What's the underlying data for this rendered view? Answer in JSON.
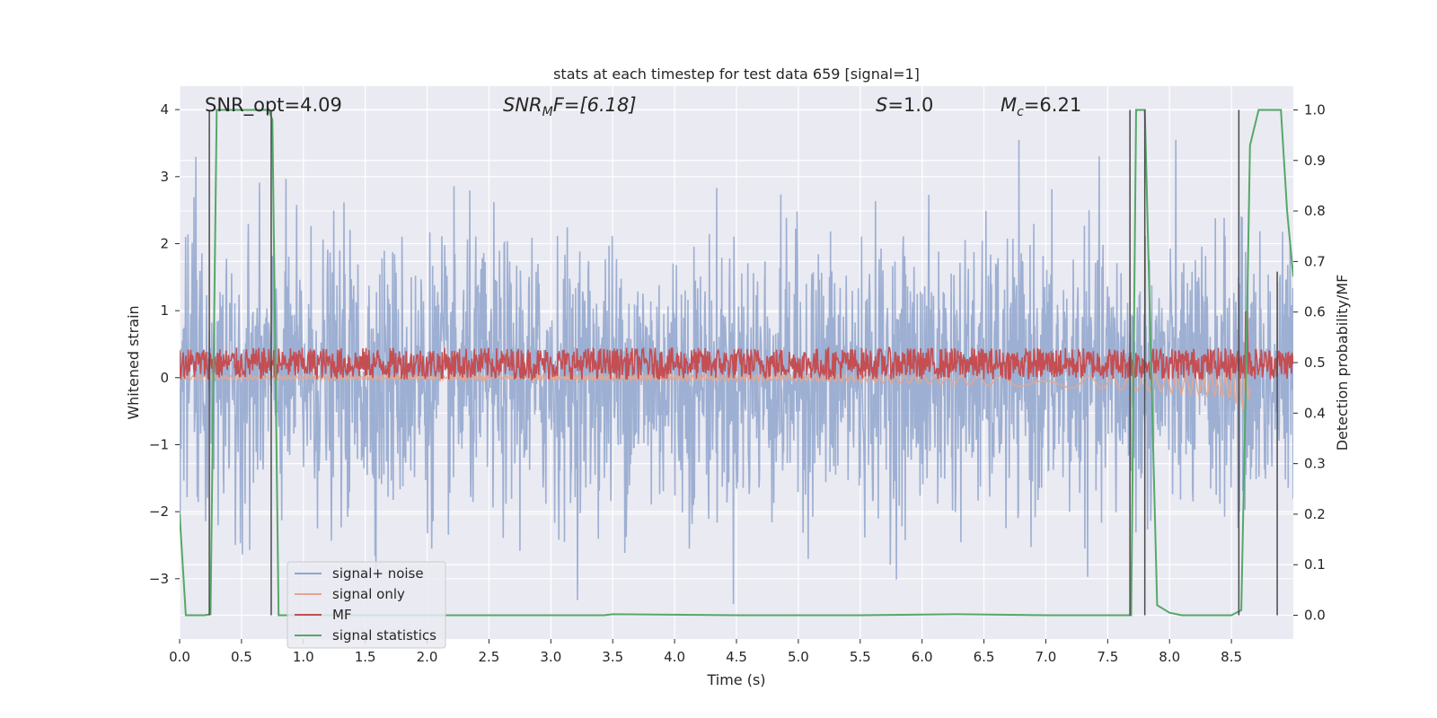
{
  "chart_data": {
    "type": "line",
    "title": "stats at each timestep for test data 659 [signal=1]",
    "xlabel": "Time (s)",
    "ylabel_left": "Whitened strain",
    "ylabel_right": "Detection probability/MF",
    "xlim": [
      0,
      9.0
    ],
    "ylim_left": [
      -3.9,
      4.35
    ],
    "ylim_right": [
      -0.047,
      1.047
    ],
    "x_ticks": [
      0.0,
      0.5,
      1.0,
      1.5,
      2.0,
      2.5,
      3.0,
      3.5,
      4.0,
      4.5,
      5.0,
      5.5,
      6.0,
      6.5,
      7.0,
      7.5,
      8.0,
      8.5
    ],
    "x_tick_labels": [
      "0.0",
      "0.5",
      "1.0",
      "1.5",
      "2.0",
      "2.5",
      "3.0",
      "3.5",
      "4.0",
      "4.5",
      "5.0",
      "5.5",
      "6.0",
      "6.5",
      "7.0",
      "7.5",
      "8.0",
      "8.5"
    ],
    "y_left_ticks": [
      -3,
      -2,
      -1,
      0,
      1,
      2,
      3,
      4
    ],
    "y_left_tick_labels": [
      "−3",
      "−2",
      "−1",
      "0",
      "1",
      "2",
      "3",
      "4"
    ],
    "y_right_ticks": [
      0.0,
      0.1,
      0.2,
      0.3,
      0.4,
      0.5,
      0.6,
      0.7,
      0.8,
      0.9,
      1.0
    ],
    "y_right_tick_labels": [
      "0.0",
      "0.1",
      "0.2",
      "0.3",
      "0.4",
      "0.5",
      "0.6",
      "0.7",
      "0.8",
      "0.9",
      "1.0"
    ],
    "grid": true,
    "legend_placement": "lower-left",
    "annotations": [
      {
        "label": "SNR_opt=4.09",
        "x": 0.2,
        "y": 4.1
      },
      {
        "label": "SNR_MF=[6.18]",
        "x": 2.6,
        "y": 4.1
      },
      {
        "label": "S=1.0",
        "x": 5.6,
        "y": 4.1
      },
      {
        "label": "M_c=6.21",
        "x": 6.6,
        "y": 4.1
      }
    ],
    "annotation_text": {
      "snr_opt": "SNR_opt=4.09",
      "snr_mf_sym": "SNR",
      "snr_mf_sub": "M",
      "snr_mf_rest": "F=[6.18]",
      "s_sym": "S",
      "s_rest": "=1.0",
      "mc_sym": "M",
      "mc_sub": "c",
      "mc_rest": "=6.21"
    },
    "series": [
      {
        "name": "signal+ noise",
        "color": "#8fa5cc",
        "axis": "left",
        "envelope_upper": 2.0,
        "envelope_lower": -2.0,
        "peak_max": 3.55,
        "peak_min": -3.6
      },
      {
        "name": "signal only",
        "color": "#e8a68c",
        "axis": "left",
        "x": [
          0.0,
          1.0,
          2.0,
          3.0,
          4.0,
          5.0,
          6.0,
          7.0,
          7.5,
          8.0,
          8.3,
          8.5,
          8.62,
          8.65
        ],
        "amplitude": [
          0.03,
          0.03,
          0.03,
          0.04,
          0.04,
          0.05,
          0.06,
          0.08,
          0.1,
          0.13,
          0.17,
          0.22,
          0.45,
          0.1
        ]
      },
      {
        "name": "MF",
        "color": "#c44e52",
        "axis": "right",
        "baseline": 0.495,
        "band_min": 0.47,
        "band_max": 0.54,
        "peak": {
          "x": 8.62,
          "y": 0.6
        }
      },
      {
        "name": "signal statistics",
        "color": "#55a868",
        "axis": "right",
        "x": [
          0.0,
          0.05,
          0.1,
          0.2,
          0.25,
          0.3,
          0.72,
          0.75,
          0.8,
          1.5,
          2.5,
          3.43,
          3.5,
          4.5,
          5.5,
          6.25,
          6.3,
          7.0,
          7.5,
          7.65,
          7.69,
          7.73,
          7.8,
          7.85,
          7.9,
          8.0,
          8.1,
          8.5,
          8.58,
          8.62,
          8.65,
          8.72,
          8.9,
          8.95,
          9.0
        ],
        "y": [
          0.2,
          0.0,
          0.0,
          0.0,
          0.002,
          1.0,
          1.0,
          0.98,
          0.0,
          0.0,
          0.0,
          0.0,
          0.002,
          0.0,
          0.0,
          0.002,
          0.002,
          0.0,
          0.0,
          0.0,
          0.0,
          1.0,
          1.0,
          0.5,
          0.02,
          0.005,
          0.0,
          0.0,
          0.01,
          0.5,
          0.93,
          1.0,
          1.0,
          0.8,
          0.67
        ]
      }
    ],
    "vertical_lines": [
      {
        "x": 0.24,
        "y_from": -0.0,
        "y_to": 1.0
      },
      {
        "x": 0.74,
        "y_from": -0.0,
        "y_to": 1.0
      },
      {
        "x": 7.68,
        "y_from": -0.0,
        "y_to": 1.0
      },
      {
        "x": 7.8,
        "y_from": -0.0,
        "y_to": 1.0
      },
      {
        "x": 8.56,
        "y_from": -0.0,
        "y_to": 1.0
      },
      {
        "x": 8.87,
        "y_from": -0.0,
        "y_to": 0.68
      }
    ]
  },
  "colors": {
    "axes_bg": "#eaeaf2",
    "grid": "#ffffff",
    "text": "#262626",
    "vline": "#4a4a4a"
  }
}
